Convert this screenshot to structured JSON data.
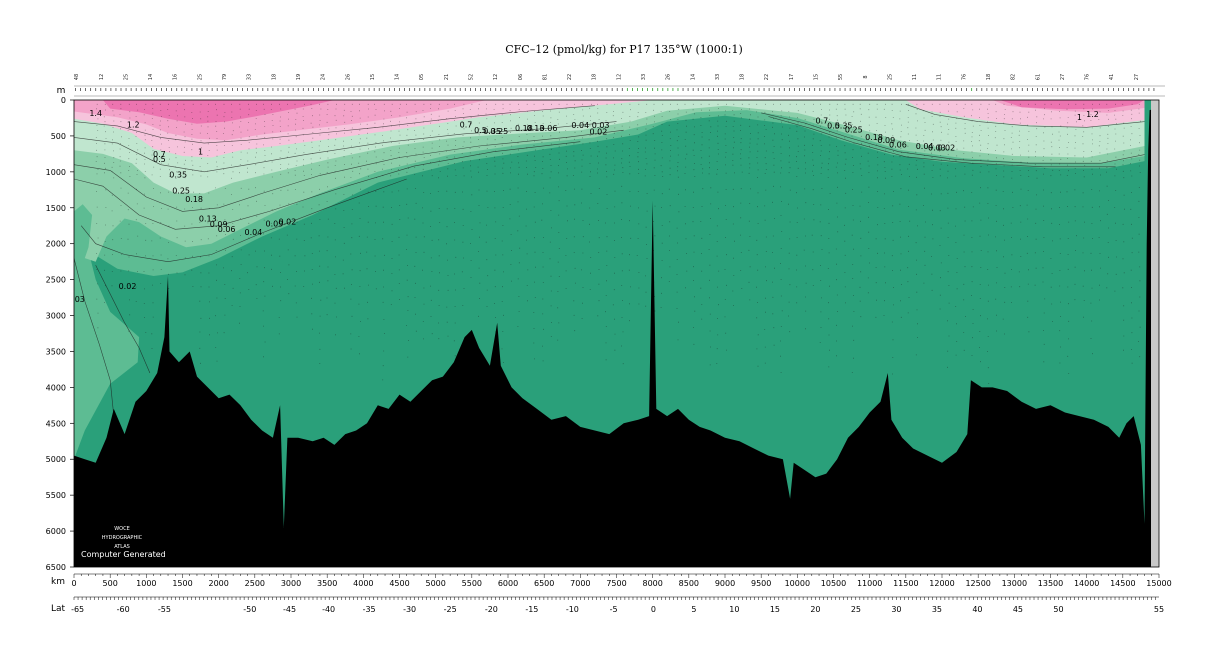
{
  "chart_data": {
    "type": "heatmap",
    "title": "CFC–12 (pmol/kg) for P17 135°W (1000:1)",
    "depth_unit": "m",
    "distance_unit": "km",
    "lat_label": "Lat",
    "xlim_km": [
      0,
      15000
    ],
    "ylim_m": [
      0,
      6500
    ],
    "y_ticks": [
      0,
      500,
      1000,
      1500,
      2000,
      2500,
      3000,
      3500,
      4000,
      4500,
      5000,
      5500,
      6000,
      6500
    ],
    "x_ticks": [
      0,
      500,
      1000,
      1500,
      2000,
      2500,
      3000,
      3500,
      4000,
      4500,
      5000,
      5500,
      6000,
      6500,
      7000,
      7500,
      8000,
      8500,
      9000,
      9500,
      10000,
      10500,
      11000,
      11500,
      12000,
      12500,
      13000,
      13500,
      14000,
      14500,
      15000
    ],
    "lat_ticks": [
      {
        "lat": -65,
        "km": 50
      },
      {
        "lat": -60,
        "km": 680
      },
      {
        "lat": -55,
        "km": 1250
      },
      {
        "lat": -50,
        "km": 2430
      },
      {
        "lat": -45,
        "km": 2980
      },
      {
        "lat": -40,
        "km": 3520
      },
      {
        "lat": -35,
        "km": 4080
      },
      {
        "lat": -30,
        "km": 4640
      },
      {
        "lat": -25,
        "km": 5200
      },
      {
        "lat": -20,
        "km": 5770
      },
      {
        "lat": -15,
        "km": 6330
      },
      {
        "lat": -10,
        "km": 6890
      },
      {
        "lat": -5,
        "km": 7460
      },
      {
        "lat": 0,
        "km": 8010
      },
      {
        "lat": 5,
        "km": 8570
      },
      {
        "lat": 10,
        "km": 9130
      },
      {
        "lat": 15,
        "km": 9690
      },
      {
        "lat": 20,
        "km": 10250
      },
      {
        "lat": 25,
        "km": 10810
      },
      {
        "lat": 30,
        "km": 11370
      },
      {
        "lat": 35,
        "km": 11930
      },
      {
        "lat": 40,
        "km": 12490
      },
      {
        "lat": 45,
        "km": 13050
      },
      {
        "lat": 50,
        "km": 13610
      },
      {
        "lat": 55,
        "km": 15000
      }
    ],
    "contour_levels": [
      0.02,
      0.04,
      0.06,
      0.09,
      0.13,
      0.18,
      0.25,
      0.35,
      0.5,
      0.7,
      1,
      1.2,
      1.4
    ],
    "colors": {
      "bottom": "#000000",
      "deep": "#2aa07a",
      "low": "#5dbc93",
      "mid": "#8ccfaa",
      "midhigh": "#c0e6cf",
      "light_pink": "#f6c4dc",
      "pink": "#f3a3c9",
      "hot_pink": "#ec74b0",
      "no_data": "#c8c8c8"
    },
    "contour_labels": [
      {
        "text": "1.4",
        "km": 300,
        "m": 220
      },
      {
        "text": "1.2",
        "km": 820,
        "m": 380
      },
      {
        "text": "1",
        "km": 1750,
        "m": 760
      },
      {
        "text": "0.7",
        "km": 1180,
        "m": 790
      },
      {
        "text": "0.5",
        "km": 1180,
        "m": 860
      },
      {
        "text": "0.35",
        "km": 1440,
        "m": 1080
      },
      {
        "text": "0.25",
        "km": 1480,
        "m": 1300
      },
      {
        "text": "0.18",
        "km": 1660,
        "m": 1420
      },
      {
        "text": "0.13",
        "km": 1850,
        "m": 1690
      },
      {
        "text": "0.09",
        "km": 2000,
        "m": 1770
      },
      {
        "text": "0.06",
        "km": 2110,
        "m": 1840
      },
      {
        "text": "0.04",
        "km": 2480,
        "m": 1880
      },
      {
        "text": "0.09",
        "km": 2770,
        "m": 1760
      },
      {
        "text": "0.02",
        "km": 2950,
        "m": 1730
      },
      {
        "text": "0.02",
        "km": 740,
        "m": 2630
      },
      {
        "text": "03",
        "km": 80,
        "m": 2810
      },
      {
        "text": "0.7",
        "km": 5420,
        "m": 380
      },
      {
        "text": "0.5",
        "km": 5620,
        "m": 460
      },
      {
        "text": "0.35",
        "km": 5780,
        "m": 470
      },
      {
        "text": "0.25",
        "km": 5880,
        "m": 470
      },
      {
        "text": "0.18",
        "km": 6220,
        "m": 430
      },
      {
        "text": "0.13",
        "km": 6380,
        "m": 430
      },
      {
        "text": "0.06",
        "km": 6560,
        "m": 430
      },
      {
        "text": "0.04",
        "km": 7000,
        "m": 390
      },
      {
        "text": "0.03",
        "km": 7280,
        "m": 390
      },
      {
        "text": "0.02",
        "km": 7250,
        "m": 480
      },
      {
        "text": "0.7",
        "km": 10340,
        "m": 330
      },
      {
        "text": "0.5",
        "km": 10500,
        "m": 400
      },
      {
        "text": "0.35",
        "km": 10640,
        "m": 400
      },
      {
        "text": "0.25",
        "km": 10780,
        "m": 450
      },
      {
        "text": "0.18",
        "km": 11060,
        "m": 560
      },
      {
        "text": "0.09",
        "km": 11230,
        "m": 600
      },
      {
        "text": "0.06",
        "km": 11390,
        "m": 660
      },
      {
        "text": "0.04",
        "km": 11760,
        "m": 680
      },
      {
        "text": "0.03",
        "km": 11930,
        "m": 700
      },
      {
        "text": "0.02",
        "km": 12060,
        "m": 700
      },
      {
        "text": "1",
        "km": 13900,
        "m": 280
      },
      {
        "text": "1.2",
        "km": 14080,
        "m": 240
      }
    ],
    "station_labels": [
      "48",
      "12",
      "25",
      "14",
      "16",
      "25",
      "79",
      "33",
      "18",
      "19",
      "24",
      "26",
      "15",
      "14",
      "05",
      "21",
      "52",
      "12",
      "06",
      "81",
      "22",
      "18",
      "12",
      "33",
      "26",
      "14",
      "33",
      "18",
      "22",
      "17",
      "15",
      "55",
      "8",
      "25",
      "11",
      "11",
      "76",
      "18",
      "82",
      "61",
      "27",
      "76",
      "41",
      "27"
    ],
    "credits": {
      "lines": [
        "WOCE",
        "HYDROGRAPHIC",
        "ATLAS"
      ],
      "note": "Computer Generated"
    }
  }
}
